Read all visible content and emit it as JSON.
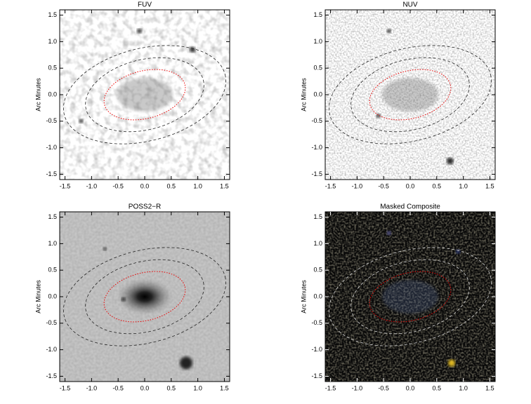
{
  "chart_data": [
    {
      "type": "image",
      "title": "FUV",
      "ylabel": "Arc Minutes",
      "xlim": [
        -1.6,
        1.6
      ],
      "ylim": [
        -1.6,
        1.6
      ],
      "xticks": [
        -1.5,
        {
          "value": -1,
          "label": "-1.0"
        },
        -0.5,
        {
          "value": 0,
          "label": "0.0"
        },
        0.5,
        {
          "value": 1,
          "label": "1.0"
        },
        1.5
      ],
      "yticks": [
        -1.5,
        {
          "value": -1,
          "label": "-1.0"
        },
        -0.5,
        {
          "value": 0,
          "label": "0.0"
        },
        0.5,
        {
          "value": 1,
          "label": "1.0"
        },
        1.5
      ]
    },
    {
      "type": "image",
      "title": "NUV",
      "ylabel": "Arc Minutes",
      "xlim": [
        -1.6,
        1.6
      ],
      "ylim": [
        -1.6,
        1.6
      ],
      "xticks": [
        -1.5,
        {
          "value": -1,
          "label": "-1.0"
        },
        -0.5,
        {
          "value": 0,
          "label": "0.0"
        },
        0.5,
        {
          "value": 1,
          "label": "1.0"
        },
        1.5
      ],
      "yticks": [
        -1.5,
        {
          "value": -1,
          "label": "-1.0"
        },
        -0.5,
        {
          "value": 0,
          "label": "0.0"
        },
        0.5,
        {
          "value": 1,
          "label": "1.0"
        },
        1.5
      ]
    },
    {
      "type": "image",
      "title": "POSS2−R",
      "ylabel": "Arc Minutes",
      "xlim": [
        -1.6,
        1.6
      ],
      "ylim": [
        -1.6,
        1.6
      ],
      "xticks": [
        -1.5,
        {
          "value": -1,
          "label": "-1.0"
        },
        -0.5,
        {
          "value": 0,
          "label": "0.0"
        },
        0.5,
        {
          "value": 1,
          "label": "1.0"
        },
        1.5
      ],
      "yticks": [
        -1.5,
        {
          "value": -1,
          "label": "-1.0"
        },
        -0.5,
        {
          "value": 0,
          "label": "0.0"
        },
        0.5,
        {
          "value": 1,
          "label": "1.0"
        },
        1.5
      ]
    },
    {
      "type": "image",
      "title": "Masked Composite",
      "ylabel": "Arc Minutes",
      "xlim": [
        -1.6,
        1.6
      ],
      "ylim": [
        -1.6,
        1.6
      ],
      "xticks": [
        -1.5,
        {
          "value": -1,
          "label": "-1.0"
        },
        -0.5,
        {
          "value": 0,
          "label": "0.0"
        },
        0.5,
        {
          "value": 1,
          "label": "1.0"
        },
        1.5
      ],
      "yticks": [
        -1.5,
        {
          "value": -1,
          "label": "-1.0"
        },
        -0.5,
        {
          "value": 0,
          "label": "0.0"
        },
        0.5,
        {
          "value": 1,
          "label": "1.0"
        },
        1.5
      ]
    }
  ]
}
